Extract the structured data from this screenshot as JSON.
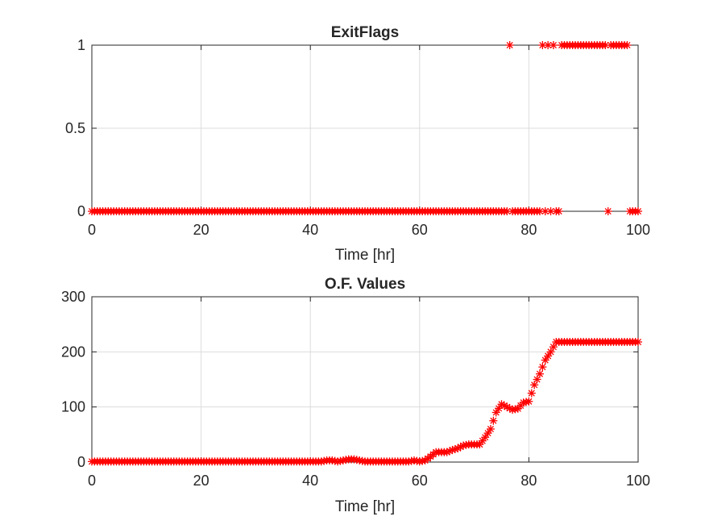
{
  "chart_data": [
    {
      "type": "scatter",
      "title": "ExitFlags",
      "xlabel": "Time [hr]",
      "ylabel": "",
      "xlim": [
        0,
        100
      ],
      "ylim": [
        0,
        1
      ],
      "xticks": [
        0,
        20,
        40,
        60,
        80,
        100
      ],
      "yticks": [
        0,
        0.5,
        1
      ],
      "xtick_labels": [
        "0",
        "20",
        "40",
        "60",
        "80",
        "100"
      ],
      "ytick_labels": [
        "0",
        "0.5",
        "1"
      ],
      "grid": true,
      "marker": "asterisk",
      "color": "#ff0000",
      "series": [
        {
          "x": [
            76.5,
            82.5,
            83.5,
            84.5,
            86,
            86.5,
            87,
            87.5,
            88,
            88.5,
            89,
            89.5,
            90,
            90.5,
            91,
            91.5,
            92,
            92.5,
            93,
            93.5,
            94,
            95,
            95.5,
            96,
            96.5,
            97,
            97.5,
            98
          ],
          "y": [
            1,
            1,
            1,
            1,
            1,
            1,
            1,
            1,
            1,
            1,
            1,
            1,
            1,
            1,
            1,
            1,
            1,
            1,
            1,
            1,
            1,
            1,
            1,
            1,
            1,
            1,
            1,
            1
          ]
        },
        {
          "x_range": [
            0,
            100
          ],
          "x_step": 0.5,
          "y": 0,
          "x_exclude": [
            76.5,
            82.5,
            83.5,
            84.5,
            86,
            86.5,
            87,
            87.5,
            88,
            88.5,
            89,
            89.5,
            90,
            90.5,
            91,
            91.5,
            92,
            92.5,
            93,
            93.5,
            94,
            95,
            95.5,
            96,
            96.5,
            97,
            97.5,
            98
          ]
        }
      ]
    },
    {
      "type": "scatter",
      "title": "O.F. Values",
      "xlabel": "Time [hr]",
      "ylabel": "",
      "xlim": [
        0,
        100
      ],
      "ylim": [
        0,
        300
      ],
      "xticks": [
        0,
        20,
        40,
        60,
        80,
        100
      ],
      "yticks": [
        0,
        100,
        200,
        300
      ],
      "xtick_labels": [
        "0",
        "20",
        "40",
        "60",
        "80",
        "100"
      ],
      "ytick_labels": [
        "0",
        "100",
        "200",
        "300"
      ],
      "grid": true,
      "marker": "asterisk",
      "color": "#ff0000",
      "x_step": 0.5,
      "curve_points": [
        [
          0,
          1
        ],
        [
          42,
          1
        ],
        [
          43,
          3
        ],
        [
          44,
          3
        ],
        [
          45,
          1
        ],
        [
          46,
          3
        ],
        [
          47,
          5
        ],
        [
          48,
          5
        ],
        [
          49,
          3
        ],
        [
          50,
          1
        ],
        [
          58,
          1
        ],
        [
          59,
          3
        ],
        [
          60,
          1
        ],
        [
          61,
          3
        ],
        [
          62,
          10
        ],
        [
          63,
          18
        ],
        [
          65,
          18
        ],
        [
          66,
          22
        ],
        [
          67,
          25
        ],
        [
          68,
          30
        ],
        [
          69,
          32
        ],
        [
          71,
          32
        ],
        [
          72,
          45
        ],
        [
          73,
          60
        ],
        [
          74,
          90
        ],
        [
          75,
          105
        ],
        [
          76,
          100
        ],
        [
          77,
          95
        ],
        [
          78,
          97
        ],
        [
          79,
          108
        ],
        [
          80,
          110
        ],
        [
          81,
          140
        ],
        [
          82,
          160
        ],
        [
          83,
          185
        ],
        [
          84,
          200
        ],
        [
          85,
          218
        ],
        [
          100,
          218
        ]
      ]
    }
  ]
}
